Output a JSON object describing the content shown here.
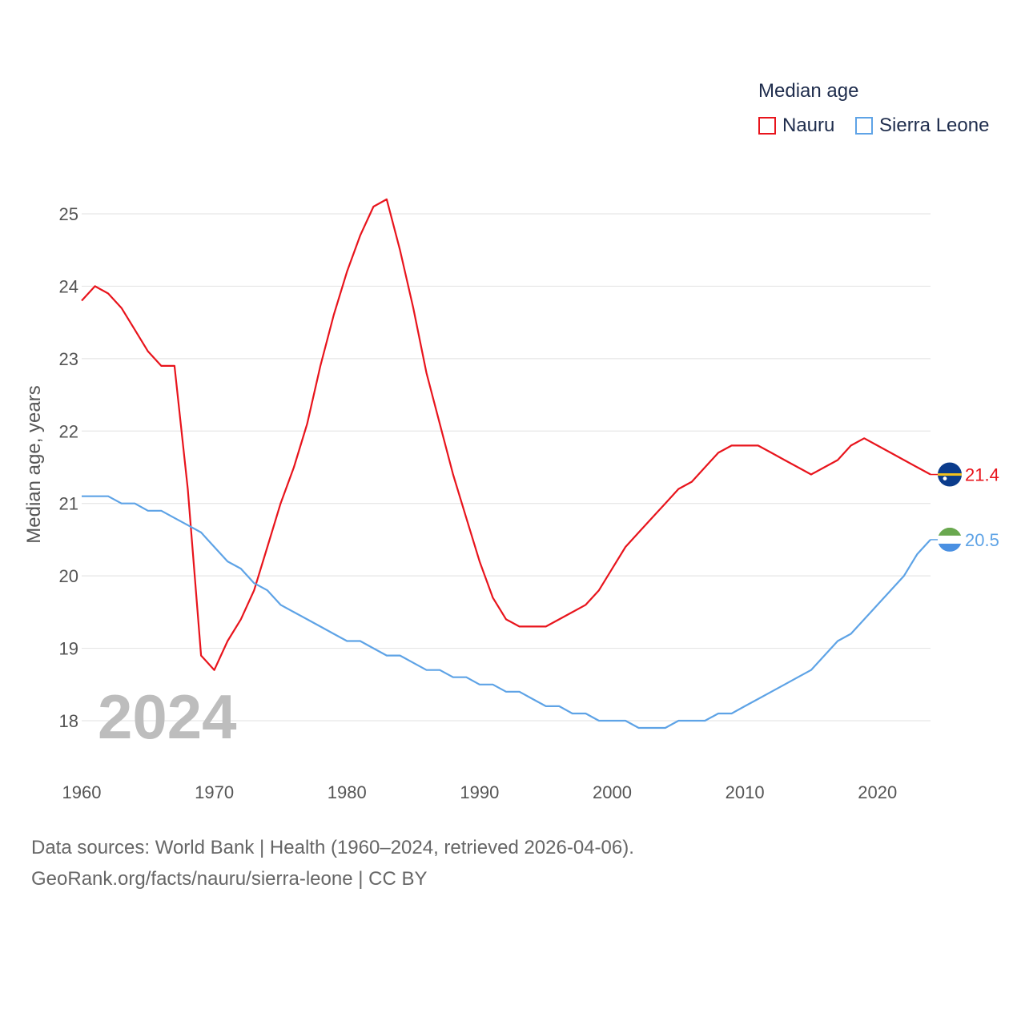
{
  "legend": {
    "title": "Median age",
    "items": [
      {
        "name": "Nauru",
        "color": "#e8141c"
      },
      {
        "name": "Sierra Leone",
        "color": "#5ea3e6"
      }
    ]
  },
  "source": {
    "line1": "Data sources: World Bank | Health (1960–2024, retrieved 2026-04-06).",
    "line2": "GeoRank.org/facts/nauru/sierra-leone | CC BY"
  },
  "chart_data": {
    "type": "line",
    "title": "Median age",
    "xlabel": "",
    "ylabel": "Median age, years",
    "year_label": "2024",
    "xlim": [
      1960,
      2024
    ],
    "ylim": [
      17.9,
      25.3
    ],
    "x_ticks": [
      1960,
      1970,
      1980,
      1990,
      2000,
      2010,
      2020
    ],
    "y_ticks": [
      18,
      19,
      20,
      21,
      22,
      23,
      24,
      25
    ],
    "grid": true,
    "legend_position": "top-right",
    "x": [
      1960,
      1961,
      1962,
      1963,
      1964,
      1965,
      1966,
      1967,
      1968,
      1969,
      1970,
      1971,
      1972,
      1973,
      1974,
      1975,
      1976,
      1977,
      1978,
      1979,
      1980,
      1981,
      1982,
      1983,
      1984,
      1985,
      1986,
      1987,
      1988,
      1989,
      1990,
      1991,
      1992,
      1993,
      1994,
      1995,
      1996,
      1997,
      1998,
      1999,
      2000,
      2001,
      2002,
      2003,
      2004,
      2005,
      2006,
      2007,
      2008,
      2009,
      2010,
      2011,
      2012,
      2013,
      2014,
      2015,
      2016,
      2017,
      2018,
      2019,
      2020,
      2021,
      2022,
      2023,
      2024
    ],
    "series": [
      {
        "name": "Nauru",
        "color": "#e8141c",
        "end_label": "21.4",
        "flag": "nauru-flag-icon",
        "values": [
          23.8,
          24.0,
          23.9,
          23.7,
          23.4,
          23.1,
          22.9,
          22.9,
          21.2,
          18.9,
          18.7,
          19.1,
          19.4,
          19.8,
          20.4,
          21.0,
          21.5,
          22.1,
          22.9,
          23.6,
          24.2,
          24.7,
          25.1,
          25.2,
          24.5,
          23.7,
          22.8,
          22.1,
          21.4,
          20.8,
          20.2,
          19.7,
          19.4,
          19.3,
          19.3,
          19.3,
          19.4,
          19.5,
          19.6,
          19.8,
          20.1,
          20.4,
          20.6,
          20.8,
          21.0,
          21.2,
          21.3,
          21.5,
          21.7,
          21.8,
          21.8,
          21.8,
          21.7,
          21.6,
          21.5,
          21.4,
          21.5,
          21.6,
          21.8,
          21.9,
          21.8,
          21.7,
          21.6,
          21.5,
          21.4
        ]
      },
      {
        "name": "Sierra Leone",
        "color": "#5ea3e6",
        "end_label": "20.5",
        "flag": "sierra-leone-flag-icon",
        "values": [
          21.1,
          21.1,
          21.1,
          21.0,
          21.0,
          20.9,
          20.9,
          20.8,
          20.7,
          20.6,
          20.4,
          20.2,
          20.1,
          19.9,
          19.8,
          19.6,
          19.5,
          19.4,
          19.3,
          19.2,
          19.1,
          19.1,
          19.0,
          18.9,
          18.9,
          18.8,
          18.7,
          18.7,
          18.6,
          18.6,
          18.5,
          18.5,
          18.4,
          18.4,
          18.3,
          18.2,
          18.2,
          18.1,
          18.1,
          18.0,
          18.0,
          18.0,
          17.9,
          17.9,
          17.9,
          18.0,
          18.0,
          18.0,
          18.1,
          18.1,
          18.2,
          18.3,
          18.4,
          18.5,
          18.6,
          18.7,
          18.9,
          19.1,
          19.2,
          19.4,
          19.6,
          19.8,
          20.0,
          20.3,
          20.5
        ]
      }
    ]
  }
}
